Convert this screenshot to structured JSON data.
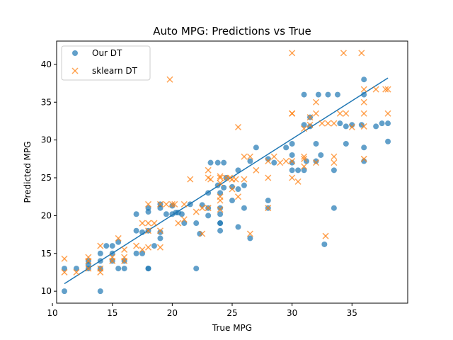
{
  "chart_data": {
    "type": "scatter",
    "title": "Auto MPG: Predictions vs True",
    "xlabel": "True MPG",
    "ylabel": "Predicted MPG",
    "xlim": [
      10.35,
      39.65
    ],
    "ylim": [
      8.42,
      43.08
    ],
    "xticks": [
      10,
      15,
      20,
      25,
      30,
      35
    ],
    "yticks": [
      10,
      15,
      20,
      25,
      30,
      35,
      40
    ],
    "grid": false,
    "legend_position": "upper-left",
    "series": [
      {
        "name": "Our DT",
        "marker": "circle",
        "color": "#1f77b4",
        "points": [
          [
            11,
            10
          ],
          [
            11,
            13
          ],
          [
            12,
            13
          ],
          [
            13,
            14
          ],
          [
            13,
            13
          ],
          [
            13,
            13.5
          ],
          [
            14,
            10
          ],
          [
            14,
            14
          ],
          [
            14,
            13
          ],
          [
            14,
            15
          ],
          [
            14.5,
            16
          ],
          [
            15,
            16
          ],
          [
            15,
            15
          ],
          [
            15,
            14
          ],
          [
            15.5,
            13
          ],
          [
            15.5,
            16.5
          ],
          [
            16,
            13
          ],
          [
            16,
            14
          ],
          [
            17,
            15
          ],
          [
            17,
            18
          ],
          [
            17,
            20.2
          ],
          [
            17.5,
            15
          ],
          [
            17.5,
            17.8
          ],
          [
            18,
            13
          ],
          [
            18,
            13
          ],
          [
            18,
            18
          ],
          [
            18,
            21
          ],
          [
            18,
            20.5
          ],
          [
            18.5,
            16
          ],
          [
            19,
            17
          ],
          [
            19,
            21
          ],
          [
            19,
            17.8
          ],
          [
            19,
            21.5
          ],
          [
            19.5,
            20.2
          ],
          [
            20,
            21.3
          ],
          [
            20,
            20.2
          ],
          [
            20.3,
            20.4
          ],
          [
            20.5,
            20.4
          ],
          [
            20.8,
            20.2
          ],
          [
            21,
            19
          ],
          [
            21.5,
            21.5
          ],
          [
            22,
            13
          ],
          [
            22,
            19
          ],
          [
            22.3,
            17.6
          ],
          [
            22.5,
            21.4
          ],
          [
            23,
            23
          ],
          [
            23,
            21
          ],
          [
            23,
            20
          ],
          [
            23.2,
            27
          ],
          [
            23.8,
            27
          ],
          [
            23.8,
            24
          ],
          [
            24,
            18
          ],
          [
            24,
            19
          ],
          [
            24,
            19
          ],
          [
            24,
            23
          ],
          [
            24,
            21
          ],
          [
            24,
            20.2
          ],
          [
            24.3,
            27
          ],
          [
            24.3,
            23.7
          ],
          [
            24.5,
            25
          ],
          [
            25,
            23.8
          ],
          [
            25,
            22
          ],
          [
            25.5,
            26
          ],
          [
            25.5,
            18.5
          ],
          [
            25.5,
            23.5
          ],
          [
            26,
            24
          ],
          [
            26,
            21
          ],
          [
            26.5,
            27.2
          ],
          [
            26.5,
            17
          ],
          [
            27,
            29
          ],
          [
            28,
            22
          ],
          [
            28,
            21
          ],
          [
            28,
            27.5
          ],
          [
            28.5,
            27
          ],
          [
            29.5,
            29
          ],
          [
            30,
            28
          ],
          [
            30,
            26
          ],
          [
            30,
            27
          ],
          [
            30,
            29.5
          ],
          [
            30.5,
            26
          ],
          [
            31,
            26
          ],
          [
            31,
            36
          ],
          [
            31,
            32
          ],
          [
            31.2,
            27.2
          ],
          [
            31.5,
            31.8
          ],
          [
            31.5,
            33
          ],
          [
            32,
            27.2
          ],
          [
            32,
            29.5
          ],
          [
            32.2,
            36
          ],
          [
            32.4,
            28
          ],
          [
            32.7,
            16.2
          ],
          [
            33,
            36
          ],
          [
            33.5,
            21
          ],
          [
            33.5,
            26
          ],
          [
            33.8,
            36
          ],
          [
            34,
            32.2
          ],
          [
            34.5,
            29.5
          ],
          [
            34.5,
            31.8
          ],
          [
            35,
            32
          ],
          [
            35.8,
            32
          ],
          [
            36,
            36
          ],
          [
            36,
            38
          ],
          [
            36,
            29
          ],
          [
            36,
            27.2
          ],
          [
            37,
            31.8
          ],
          [
            37.5,
            32.2
          ],
          [
            38,
            32.2
          ],
          [
            38,
            29.8
          ]
        ]
      },
      {
        "name": "sklearn DT",
        "marker": "x",
        "color": "#ff7f0e",
        "points": [
          [
            11,
            14.3
          ],
          [
            11,
            12.5
          ],
          [
            12,
            12.5
          ],
          [
            13,
            14.5
          ],
          [
            13,
            14
          ],
          [
            13,
            13
          ],
          [
            14,
            16
          ],
          [
            14,
            13
          ],
          [
            14,
            12.5
          ],
          [
            15,
            14.5
          ],
          [
            15,
            14
          ],
          [
            15.5,
            17
          ],
          [
            16,
            14
          ],
          [
            16,
            14.5
          ],
          [
            16,
            15.5
          ],
          [
            17,
            16
          ],
          [
            17.5,
            15.5
          ],
          [
            17.5,
            19
          ],
          [
            18,
            15.8
          ],
          [
            18,
            18
          ],
          [
            18,
            19
          ],
          [
            18,
            21.5
          ],
          [
            18.5,
            19
          ],
          [
            19,
            15.8
          ],
          [
            19,
            18
          ],
          [
            19,
            21.5
          ],
          [
            19.5,
            21.5
          ],
          [
            19.8,
            38
          ],
          [
            20,
            21.5
          ],
          [
            20.2,
            21.5
          ],
          [
            20.5,
            19
          ],
          [
            21,
            19.5
          ],
          [
            21,
            21.5
          ],
          [
            21.5,
            24.8
          ],
          [
            22,
            20.5
          ],
          [
            22.5,
            17.6
          ],
          [
            22.5,
            21
          ],
          [
            23,
            21
          ],
          [
            23,
            25
          ],
          [
            23,
            26
          ],
          [
            23.2,
            24.8
          ],
          [
            24,
            25
          ],
          [
            24,
            25.2
          ],
          [
            24,
            20.8
          ],
          [
            24,
            22
          ],
          [
            24,
            24.3
          ],
          [
            24,
            22.5
          ],
          [
            24.5,
            25
          ],
          [
            24.8,
            25
          ],
          [
            25,
            23.5
          ],
          [
            25,
            24.8
          ],
          [
            25.3,
            24.8
          ],
          [
            25.5,
            31.7
          ],
          [
            25.5,
            22.5
          ],
          [
            26,
            27.8
          ],
          [
            26,
            24.8
          ],
          [
            26.5,
            17.6
          ],
          [
            26.5,
            27.8
          ],
          [
            27,
            26
          ],
          [
            28,
            21
          ],
          [
            28,
            27.2
          ],
          [
            28,
            25
          ],
          [
            28.5,
            27.8
          ],
          [
            29,
            27
          ],
          [
            29.5,
            27.2
          ],
          [
            30,
            27.2
          ],
          [
            30,
            33.5
          ],
          [
            30,
            33.5
          ],
          [
            30,
            41.5
          ],
          [
            30,
            25
          ],
          [
            30.5,
            24.5
          ],
          [
            31,
            26.5
          ],
          [
            31,
            27.8
          ],
          [
            31,
            27.5
          ],
          [
            31,
            31.5
          ],
          [
            31.5,
            33
          ],
          [
            31.5,
            32
          ],
          [
            32,
            27
          ],
          [
            32,
            35
          ],
          [
            32,
            33.5
          ],
          [
            32.5,
            32.2
          ],
          [
            32.8,
            17.3
          ],
          [
            33,
            32.2
          ],
          [
            33.5,
            27.8
          ],
          [
            33.5,
            32.2
          ],
          [
            33.5,
            27
          ],
          [
            34,
            33.5
          ],
          [
            34.3,
            41.5
          ],
          [
            34.5,
            33.5
          ],
          [
            35,
            31.7
          ],
          [
            35.8,
            41.5
          ],
          [
            36,
            35
          ],
          [
            36,
            36.7
          ],
          [
            36,
            33.5
          ],
          [
            36,
            27.5
          ],
          [
            36,
            31.8
          ],
          [
            37,
            36.7
          ],
          [
            37.8,
            36.7
          ],
          [
            38,
            36.7
          ],
          [
            38,
            33.5
          ]
        ]
      }
    ],
    "fit_line": {
      "color": "#1f77b4",
      "x": [
        11,
        38
      ],
      "y": [
        11.0,
        38.2
      ]
    }
  }
}
